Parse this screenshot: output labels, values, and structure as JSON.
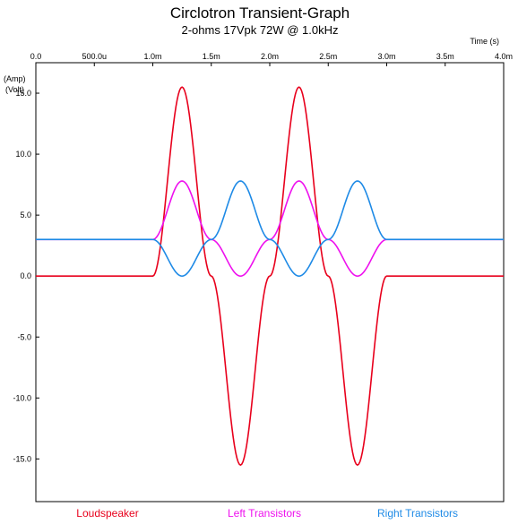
{
  "chart_data": {
    "type": "line",
    "title": "Circlotron Transient-Graph",
    "subtitle": "2-ohms 17Vpk 72W @ 1.0kHz",
    "xlabel": "Time  (s)",
    "ylabel_line1": "(Amp)",
    "ylabel_line2": "(Volt)",
    "xlim": [
      0,
      0.004
    ],
    "ylim": [
      -18.5,
      17.5
    ],
    "x_ticks": [
      {
        "value": 0,
        "label": "0.0"
      },
      {
        "value": 0.0005,
        "label": "500.0u"
      },
      {
        "value": 0.001,
        "label": "1.0m"
      },
      {
        "value": 0.0015,
        "label": "1.5m"
      },
      {
        "value": 0.002,
        "label": "2.0m"
      },
      {
        "value": 0.0025,
        "label": "2.5m"
      },
      {
        "value": 0.003,
        "label": "3.0m"
      },
      {
        "value": 0.0035,
        "label": "3.5m"
      },
      {
        "value": 0.004,
        "label": "4.0m"
      }
    ],
    "y_ticks": [
      {
        "value": 15,
        "label": "15.0"
      },
      {
        "value": 10,
        "label": "10.0"
      },
      {
        "value": 5,
        "label": "5.0"
      },
      {
        "value": 0,
        "label": "0.0"
      },
      {
        "value": -5,
        "label": "-5.0"
      },
      {
        "value": -10,
        "label": "-10.0"
      },
      {
        "value": -15,
        "label": "-15.0"
      }
    ],
    "grid": false,
    "legend_position": "bottom",
    "series": [
      {
        "name": "Loudspeaker",
        "color": "#e8001c",
        "x": [
          0,
          0.001,
          0.00125,
          0.0015,
          0.00175,
          0.002,
          0.00225,
          0.0025,
          0.00275,
          0.003,
          0.004
        ],
        "values": [
          0,
          0,
          15.5,
          0,
          -15.5,
          0,
          15.5,
          0,
          -15.5,
          0,
          0
        ]
      },
      {
        "name": "Left Transistors",
        "color": "#ee10ee",
        "x": [
          0,
          0.001,
          0.00125,
          0.0015,
          0.00175,
          0.002,
          0.00225,
          0.0025,
          0.00275,
          0.003,
          0.004
        ],
        "values": [
          3.0,
          3.0,
          7.8,
          3.0,
          0,
          3.0,
          7.8,
          3.0,
          0,
          3.0,
          3.0
        ]
      },
      {
        "name": "Right Transistors",
        "color": "#1e8ae6",
        "x": [
          0,
          0.001,
          0.00125,
          0.0015,
          0.00175,
          0.002,
          0.00225,
          0.0025,
          0.00275,
          0.003,
          0.004
        ],
        "values": [
          3.0,
          3.0,
          0,
          3.0,
          7.8,
          3.0,
          0,
          3.0,
          7.8,
          3.0,
          3.0
        ]
      }
    ]
  }
}
